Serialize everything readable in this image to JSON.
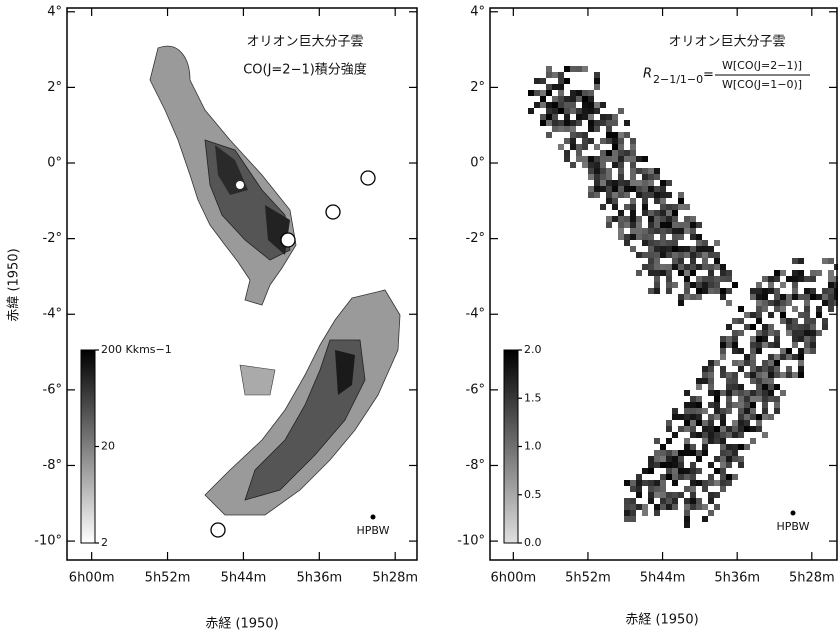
{
  "chart_data": [
    {
      "type": "map",
      "title": "オリオン巨大分子雲",
      "subtitle": "CO(J=2−1)積分強度",
      "xlabel": "赤経 (1950)",
      "ylabel": "赤緯 (1950)",
      "xlim": [
        362.6,
        325.7
      ],
      "ylim": [
        -10.5,
        4.1
      ],
      "xticks": [
        {
          "value": 360,
          "label": "6h00m"
        },
        {
          "value": 352,
          "label": "5h52m"
        },
        {
          "value": 344,
          "label": "5h44m"
        },
        {
          "value": 336,
          "label": "5h36m"
        },
        {
          "value": 328,
          "label": "5h28m"
        }
      ],
      "yticks": [
        {
          "value": 4,
          "label": "4°"
        },
        {
          "value": 2,
          "label": "2°"
        },
        {
          "value": 0,
          "label": "0°"
        },
        {
          "value": -2,
          "label": "-2°"
        },
        {
          "value": -4,
          "label": "-4°"
        },
        {
          "value": -6,
          "label": "-6°"
        },
        {
          "value": -8,
          "label": "-8°"
        },
        {
          "value": -10,
          "label": "-10°"
        }
      ],
      "colorbar": {
        "scale": "log",
        "lim": [
          2,
          200
        ],
        "ticks": [
          {
            "value": 200,
            "label": "200 Kkms−1"
          },
          20,
          2
        ],
        "colors": [
          "#ffffff",
          "#000000"
        ]
      },
      "beam_label": "HPBW"
    },
    {
      "type": "map",
      "title": "オリオン巨大分子雲",
      "formula": {
        "symbol": "R",
        "subscript": "2−1/1−0",
        "equals": "=",
        "numerator": "W[CO(J=2−1)]",
        "denominator": "W[CO(J=1−0)]"
      },
      "xlabel": "赤経 (1950)",
      "xlim": [
        362.5,
        325.3
      ],
      "ylim": [
        -10.5,
        4.1
      ],
      "xticks": [
        {
          "value": 360,
          "label": "6h00m"
        },
        {
          "value": 352,
          "label": "5h52m"
        },
        {
          "value": 344,
          "label": "5h44m"
        },
        {
          "value": 336,
          "label": "5h36m"
        },
        {
          "value": 328,
          "label": "5h28m"
        }
      ],
      "yticks": [
        {
          "value": 4,
          "label": "4°"
        },
        {
          "value": 2,
          "label": "2°"
        },
        {
          "value": 0,
          "label": "0°"
        },
        {
          "value": -2,
          "label": "-2°"
        },
        {
          "value": -4,
          "label": "-4°"
        },
        {
          "value": -6,
          "label": "-6°"
        },
        {
          "value": -8,
          "label": "-8°"
        },
        {
          "value": -10,
          "label": "-10°"
        }
      ],
      "colorbar": {
        "scale": "linear",
        "lim": [
          0,
          2
        ],
        "ticks": [
          {
            "value": 2,
            "label": "2.0"
          },
          1.5,
          {
            "value": 1,
            "label": "1.0"
          },
          0.5,
          {
            "value": 0,
            "label": "0.0"
          }
        ],
        "colors": [
          "#e0e0e0",
          "#000000"
        ]
      },
      "beam_label": "HPBW"
    }
  ]
}
